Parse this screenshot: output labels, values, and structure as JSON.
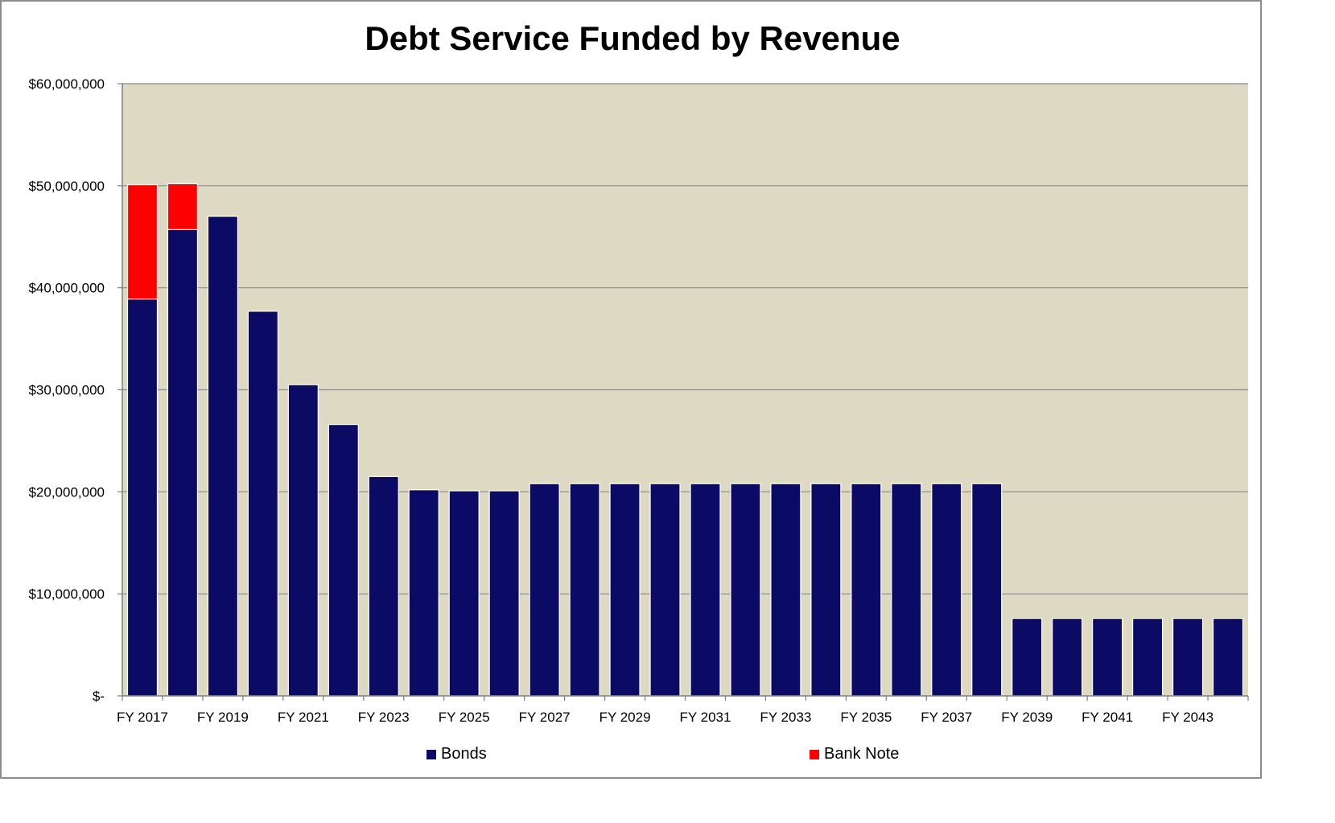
{
  "chart_data": {
    "type": "bar",
    "stacked": true,
    "title": "Debt Service Funded by Revenue",
    "xlabel": "",
    "ylabel": "",
    "ylim": [
      0,
      60000000
    ],
    "yticks": [
      0,
      10000000,
      20000000,
      30000000,
      40000000,
      50000000,
      60000000
    ],
    "ytick_labels": [
      "$-",
      "$10,000,000",
      "$20,000,000",
      "$30,000,000",
      "$40,000,000",
      "$50,000,000",
      "$60,000,000"
    ],
    "categories": [
      "FY 2017",
      "FY 2018",
      "FY 2019",
      "FY 2020",
      "FY 2021",
      "FY 2022",
      "FY 2023",
      "FY 2024",
      "FY 2025",
      "FY 2026",
      "FY 2027",
      "FY 2028",
      "FY 2029",
      "FY 2030",
      "FY 2031",
      "FY 2032",
      "FY 2033",
      "FY 2034",
      "FY 2035",
      "FY 2036",
      "FY 2037",
      "FY 2038",
      "FY 2039",
      "FY 2040",
      "FY 2041",
      "FY 2042",
      "FY 2043",
      "FY 2044"
    ],
    "xtick_labels": [
      "FY 2017",
      "",
      "FY 2019",
      "",
      "FY 2021",
      "",
      "FY 2023",
      "",
      "FY 2025",
      "",
      "FY 2027",
      "",
      "FY 2029",
      "",
      "FY 2031",
      "",
      "FY 2033",
      "",
      "FY 2035",
      "",
      "FY 2037",
      "",
      "FY 2039",
      "",
      "FY 2041",
      "",
      "FY 2043",
      ""
    ],
    "series": [
      {
        "name": "Bonds",
        "color": "#0b0b66",
        "values": [
          38900000,
          45700000,
          47000000,
          37700000,
          30500000,
          26600000,
          21500000,
          20200000,
          20100000,
          20100000,
          20800000,
          20800000,
          20800000,
          20800000,
          20800000,
          20800000,
          20800000,
          20800000,
          20800000,
          20800000,
          20800000,
          20800000,
          7600000,
          7600000,
          7600000,
          7600000,
          7600000,
          7600000
        ]
      },
      {
        "name": "Bank Note",
        "color": "#ff0000",
        "values": [
          11200000,
          4500000,
          0,
          0,
          0,
          0,
          0,
          0,
          0,
          0,
          0,
          0,
          0,
          0,
          0,
          0,
          0,
          0,
          0,
          0,
          0,
          0,
          0,
          0,
          0,
          0,
          0,
          0
        ]
      }
    ],
    "plot_background": "#ddd9c3",
    "grid": true,
    "legend_position": "bottom"
  }
}
